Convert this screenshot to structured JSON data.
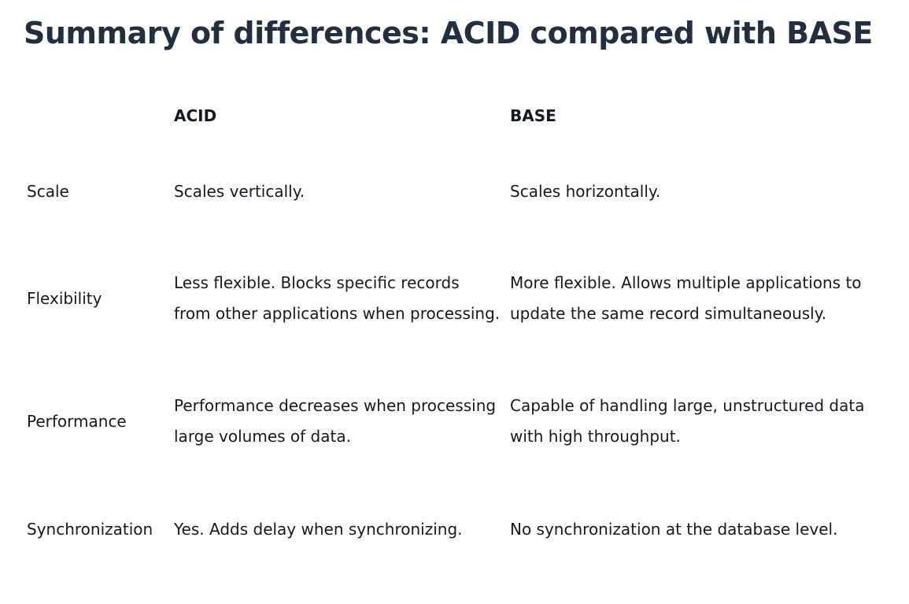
{
  "title": "Summary of differences: ACID compared with BASE",
  "table": {
    "headers": [
      "",
      "ACID",
      "BASE"
    ],
    "rows": [
      {
        "label": "Scale",
        "acid": "Scales vertically.",
        "base": "Scales horizontally."
      },
      {
        "label": "Flexibility",
        "acid": "Less flexible. Blocks specific records from other applications when processing.",
        "base": "More flexible. Allows multiple applications to update the same record simultaneously."
      },
      {
        "label": "Performance",
        "acid": "Performance decreases when processing large volumes of data.",
        "base": "Capable of handling large, unstructured data with high throughput."
      },
      {
        "label": "Synchronization",
        "acid": "Yes. Adds delay when synchronizing.",
        "base": "No synchronization at the database level."
      }
    ]
  }
}
